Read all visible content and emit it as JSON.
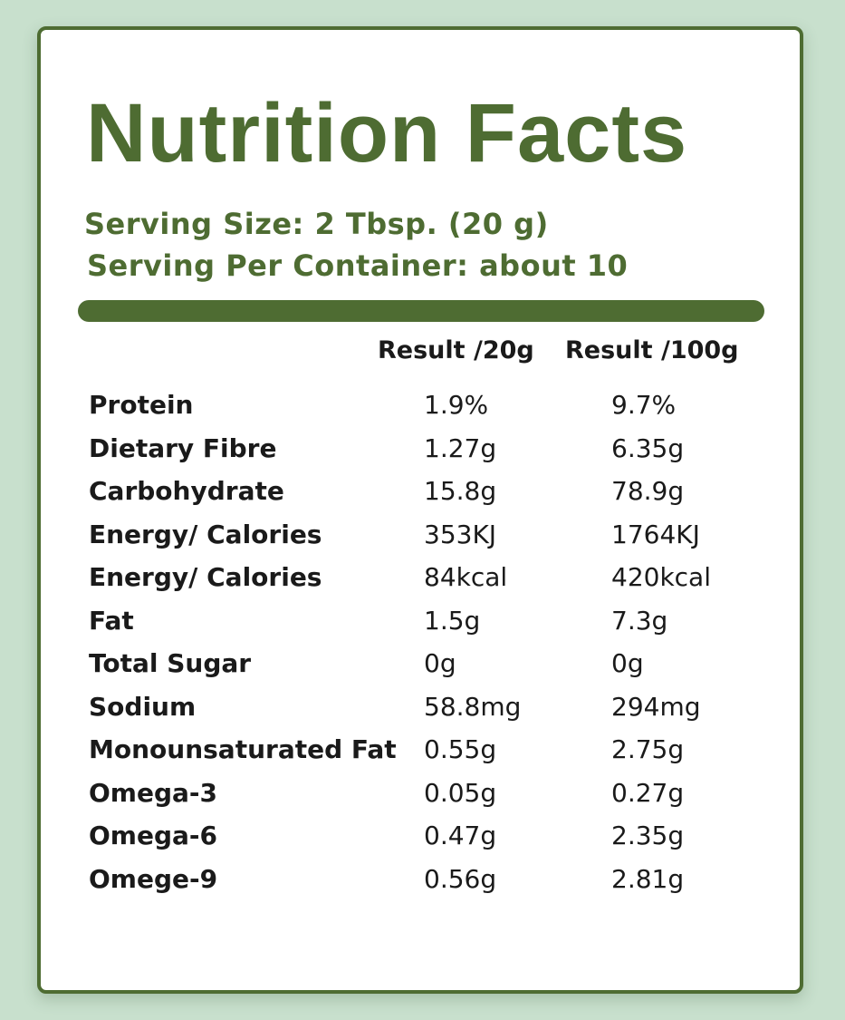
{
  "title": "Nutrition Facts",
  "serving_size": "Serving Size: 2 Tbsp. (20 g)",
  "serving_per_container": "Serving Per Container: about 10",
  "columns": [
    "Result /20g",
    "Result /100g"
  ],
  "rows": [
    {
      "name": "Protein",
      "per_20g": "1.9%",
      "per_100g": "9.7%"
    },
    {
      "name": "Dietary Fibre",
      "per_20g": "1.27g",
      "per_100g": "6.35g"
    },
    {
      "name": "Carbohydrate",
      "per_20g": "15.8g",
      "per_100g": "78.9g"
    },
    {
      "name": "Energy/ Calories",
      "per_20g": "353KJ",
      "per_100g": "1764KJ"
    },
    {
      "name": "Energy/ Calories",
      "per_20g": "84kcal",
      "per_100g": "420kcal"
    },
    {
      "name": "Fat",
      "per_20g": "1.5g",
      "per_100g": "7.3g"
    },
    {
      "name": "Total Sugar",
      "per_20g": "0g",
      "per_100g": "0g"
    },
    {
      "name": "Sodium",
      "per_20g": "58.8mg",
      "per_100g": "294mg"
    },
    {
      "name": "Monounsaturated Fat",
      "per_20g": "0.55g",
      "per_100g": "2.75g"
    },
    {
      "name": "Omega-3",
      "per_20g": "0.05g",
      "per_100g": "0.27g"
    },
    {
      "name": "Omega-6",
      "per_20g": "0.47g",
      "per_100g": "2.35g"
    },
    {
      "name": "Omege-9",
      "per_20g": "0.56g",
      "per_100g": "2.81g"
    }
  ],
  "colors": {
    "accent": "#4e6c32",
    "background": "#c8e0cd",
    "card": "#ffffff",
    "text": "#1a1a1a"
  }
}
